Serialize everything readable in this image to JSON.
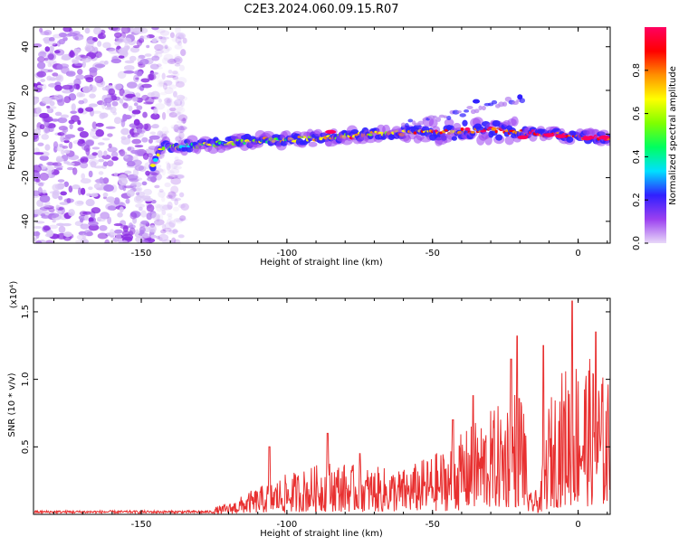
{
  "page_title": "C2E3.2024.060.09.15.R07",
  "chart_data": [
    {
      "type": "heatmap",
      "title": "C2E3.2024.060.09.15.R07",
      "xlabel": "Height of straight line (km)",
      "ylabel": "Frequency (Hz)",
      "xlim": [
        -187,
        11
      ],
      "ylim": [
        -50,
        49
      ],
      "xticks": [
        -150,
        -100,
        -50,
        0
      ],
      "yticks": [
        -40,
        -20,
        0,
        20,
        40
      ],
      "colorbar": {
        "label": "Normalized spectral amplitude",
        "range": [
          0,
          1
        ],
        "ticks": [
          "0.0",
          "0.2",
          "0.4",
          "0.6",
          "0.8"
        ],
        "tick_values": [
          0,
          0.2,
          0.4,
          0.6,
          0.8
        ],
        "colormap": [
          "#e8d8f8",
          "#9b40f0",
          "#3020ff",
          "#00e0ff",
          "#00ff60",
          "#80ff00",
          "#ffff00",
          "#ff9000",
          "#ff0000",
          "#ff0060"
        ]
      },
      "ridge": [
        {
          "x": -146,
          "y": -14
        },
        {
          "x": -143,
          "y": -6
        },
        {
          "x": -130,
          "y": -5
        },
        {
          "x": -110,
          "y": -3
        },
        {
          "x": -90,
          "y": -2
        },
        {
          "x": -70,
          "y": 0
        },
        {
          "x": -50,
          "y": 1
        },
        {
          "x": -30,
          "y": 2
        },
        {
          "x": -10,
          "y": 0
        },
        {
          "x": 0,
          "y": -1
        },
        {
          "x": 10,
          "y": -2
        }
      ],
      "noise_region_x": [
        -187,
        -135
      ]
    },
    {
      "type": "line",
      "xlabel": "Height of straight line (km)",
      "ylabel": "SNR (10 * v/v)",
      "y_multiplier": "(x10⁴)",
      "xlim": [
        -187,
        11
      ],
      "ylim": [
        0,
        1.6
      ],
      "xticks": [
        -150,
        -100,
        -50,
        0
      ],
      "yticks": [
        "0.5",
        "1.0",
        "1.5"
      ],
      "ytick_values": [
        0.5,
        1.0,
        1.5
      ],
      "color": "#e83030",
      "envelope": [
        {
          "x": -187,
          "y": 0.02
        },
        {
          "x": -130,
          "y": 0.03
        },
        {
          "x": -120,
          "y": 0.08
        },
        {
          "x": -112,
          "y": 0.18
        },
        {
          "x": -100,
          "y": 0.3
        },
        {
          "x": -85,
          "y": 0.4
        },
        {
          "x": -75,
          "y": 0.36
        },
        {
          "x": -60,
          "y": 0.34
        },
        {
          "x": -45,
          "y": 0.5
        },
        {
          "x": -35,
          "y": 0.7
        },
        {
          "x": -25,
          "y": 0.85
        },
        {
          "x": -19,
          "y": 1.05
        },
        {
          "x": -17,
          "y": 0.15
        },
        {
          "x": -13,
          "y": 0.2
        },
        {
          "x": -10,
          "y": 0.85
        },
        {
          "x": -5,
          "y": 1.1
        },
        {
          "x": 0,
          "y": 1.2
        },
        {
          "x": 5,
          "y": 1.15
        },
        {
          "x": 10,
          "y": 1.0
        }
      ],
      "peaks": [
        {
          "x": -2,
          "y": 1.58
        },
        {
          "x": -12,
          "y": 1.25
        },
        {
          "x": -21,
          "y": 1.32
        },
        {
          "x": -23,
          "y": 1.15
        },
        {
          "x": 6,
          "y": 1.35
        },
        {
          "x": -36,
          "y": 0.88
        },
        {
          "x": -43,
          "y": 0.7
        },
        {
          "x": -86,
          "y": 0.6
        },
        {
          "x": -75,
          "y": 0.45
        },
        {
          "x": -106,
          "y": 0.5
        }
      ]
    }
  ]
}
